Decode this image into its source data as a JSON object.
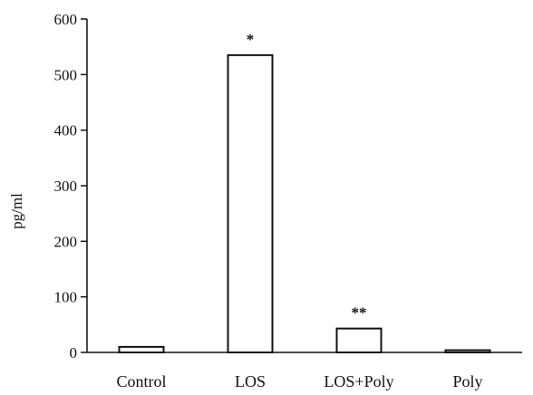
{
  "chart_data": {
    "type": "bar",
    "title": "",
    "xlabel": "",
    "ylabel": "pg/ml",
    "ylim": [
      0,
      600
    ],
    "yticks": [
      0,
      100,
      200,
      300,
      400,
      500,
      600
    ],
    "categories": [
      "Control",
      "LOS",
      "LOS+Poly",
      "Poly"
    ],
    "values": [
      10,
      535,
      43,
      4
    ],
    "annotations": [
      "",
      "*",
      "**",
      ""
    ],
    "grid": false,
    "legend": "none",
    "colors": {
      "bar_fill": "#ffffff",
      "bar_stroke": "#111111",
      "axis": "#111111"
    }
  }
}
